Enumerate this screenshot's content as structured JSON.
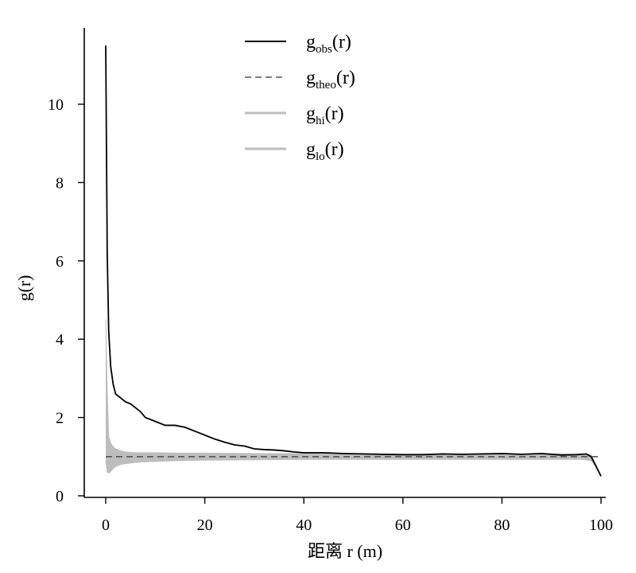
{
  "chart_data": {
    "type": "line",
    "title": "",
    "xlabel": "距离  r (m)",
    "ylabel": "g(r)",
    "xlim": [
      0,
      100
    ],
    "ylim": [
      0,
      11.8
    ],
    "xticks": [
      0,
      20,
      40,
      60,
      80,
      100
    ],
    "xtick_labels": [
      "0",
      "20",
      "40",
      "60",
      "80",
      "100"
    ],
    "yticks": [
      0,
      2,
      4,
      6,
      8,
      10
    ],
    "ytick_labels": [
      "0",
      "2",
      "4",
      "6",
      "8",
      "10"
    ],
    "grid": false,
    "legend_position": "top-center",
    "series": [
      {
        "name": "obs",
        "legend_base": "g",
        "legend_sub": "obs",
        "legend_suffix": "(r)",
        "style": "solid",
        "color": "#000000",
        "x": [
          0,
          0.3,
          0.6,
          1,
          1.5,
          2,
          3,
          4,
          5,
          6,
          7,
          8,
          10,
          12,
          14,
          16,
          18,
          20,
          22,
          24,
          26,
          28,
          30,
          32,
          34,
          36,
          38,
          40,
          44,
          48,
          52,
          56,
          60,
          64,
          68,
          72,
          76,
          80,
          84,
          88,
          92,
          95,
          97,
          98,
          99,
          100
        ],
        "y": [
          11.5,
          6.2,
          4.2,
          3.3,
          2.85,
          2.6,
          2.5,
          2.4,
          2.35,
          2.25,
          2.15,
          2.0,
          1.9,
          1.8,
          1.8,
          1.75,
          1.65,
          1.55,
          1.45,
          1.37,
          1.3,
          1.27,
          1.2,
          1.18,
          1.17,
          1.15,
          1.12,
          1.1,
          1.1,
          1.08,
          1.07,
          1.06,
          1.05,
          1.05,
          1.07,
          1.06,
          1.07,
          1.08,
          1.06,
          1.08,
          1.04,
          1.05,
          1.07,
          1.0,
          0.75,
          0.5
        ]
      },
      {
        "name": "theo",
        "legend_base": "g",
        "legend_sub": "theo",
        "legend_suffix": "(r)",
        "style": "dashed",
        "color": "#555555",
        "x": [
          0,
          100
        ],
        "y": [
          1.0,
          1.0
        ]
      },
      {
        "name": "hi",
        "legend_base": "g",
        "legend_sub": "hi",
        "legend_suffix": "(r)",
        "style": "band-upper",
        "color": "#bdbdbd",
        "x": [
          0,
          0.3,
          0.6,
          1,
          1.5,
          2,
          3,
          4,
          6,
          8,
          10,
          15,
          20,
          30,
          40,
          50,
          60,
          70,
          80,
          90,
          96,
          98,
          99,
          100
        ],
        "y": [
          4.5,
          2.7,
          1.5,
          1.35,
          1.25,
          1.2,
          1.15,
          1.12,
          1.1,
          1.1,
          1.1,
          1.09,
          1.09,
          1.08,
          1.08,
          1.07,
          1.07,
          1.07,
          1.07,
          1.07,
          1.07,
          1.05,
          0.8,
          0.5
        ]
      },
      {
        "name": "lo",
        "legend_base": "g",
        "legend_sub": "lo",
        "legend_suffix": "(r)",
        "style": "band-lower",
        "color": "#bdbdbd",
        "x": [
          0,
          0.3,
          0.6,
          1,
          1.5,
          2,
          3,
          4,
          6,
          8,
          10,
          15,
          20,
          30,
          40,
          50,
          60,
          70,
          80,
          90,
          96,
          98,
          99,
          100
        ],
        "y": [
          0.9,
          0.6,
          0.58,
          0.62,
          0.7,
          0.75,
          0.8,
          0.82,
          0.85,
          0.87,
          0.88,
          0.9,
          0.91,
          0.92,
          0.93,
          0.93,
          0.93,
          0.93,
          0.93,
          0.93,
          0.93,
          0.9,
          0.75,
          0.5
        ]
      }
    ]
  }
}
